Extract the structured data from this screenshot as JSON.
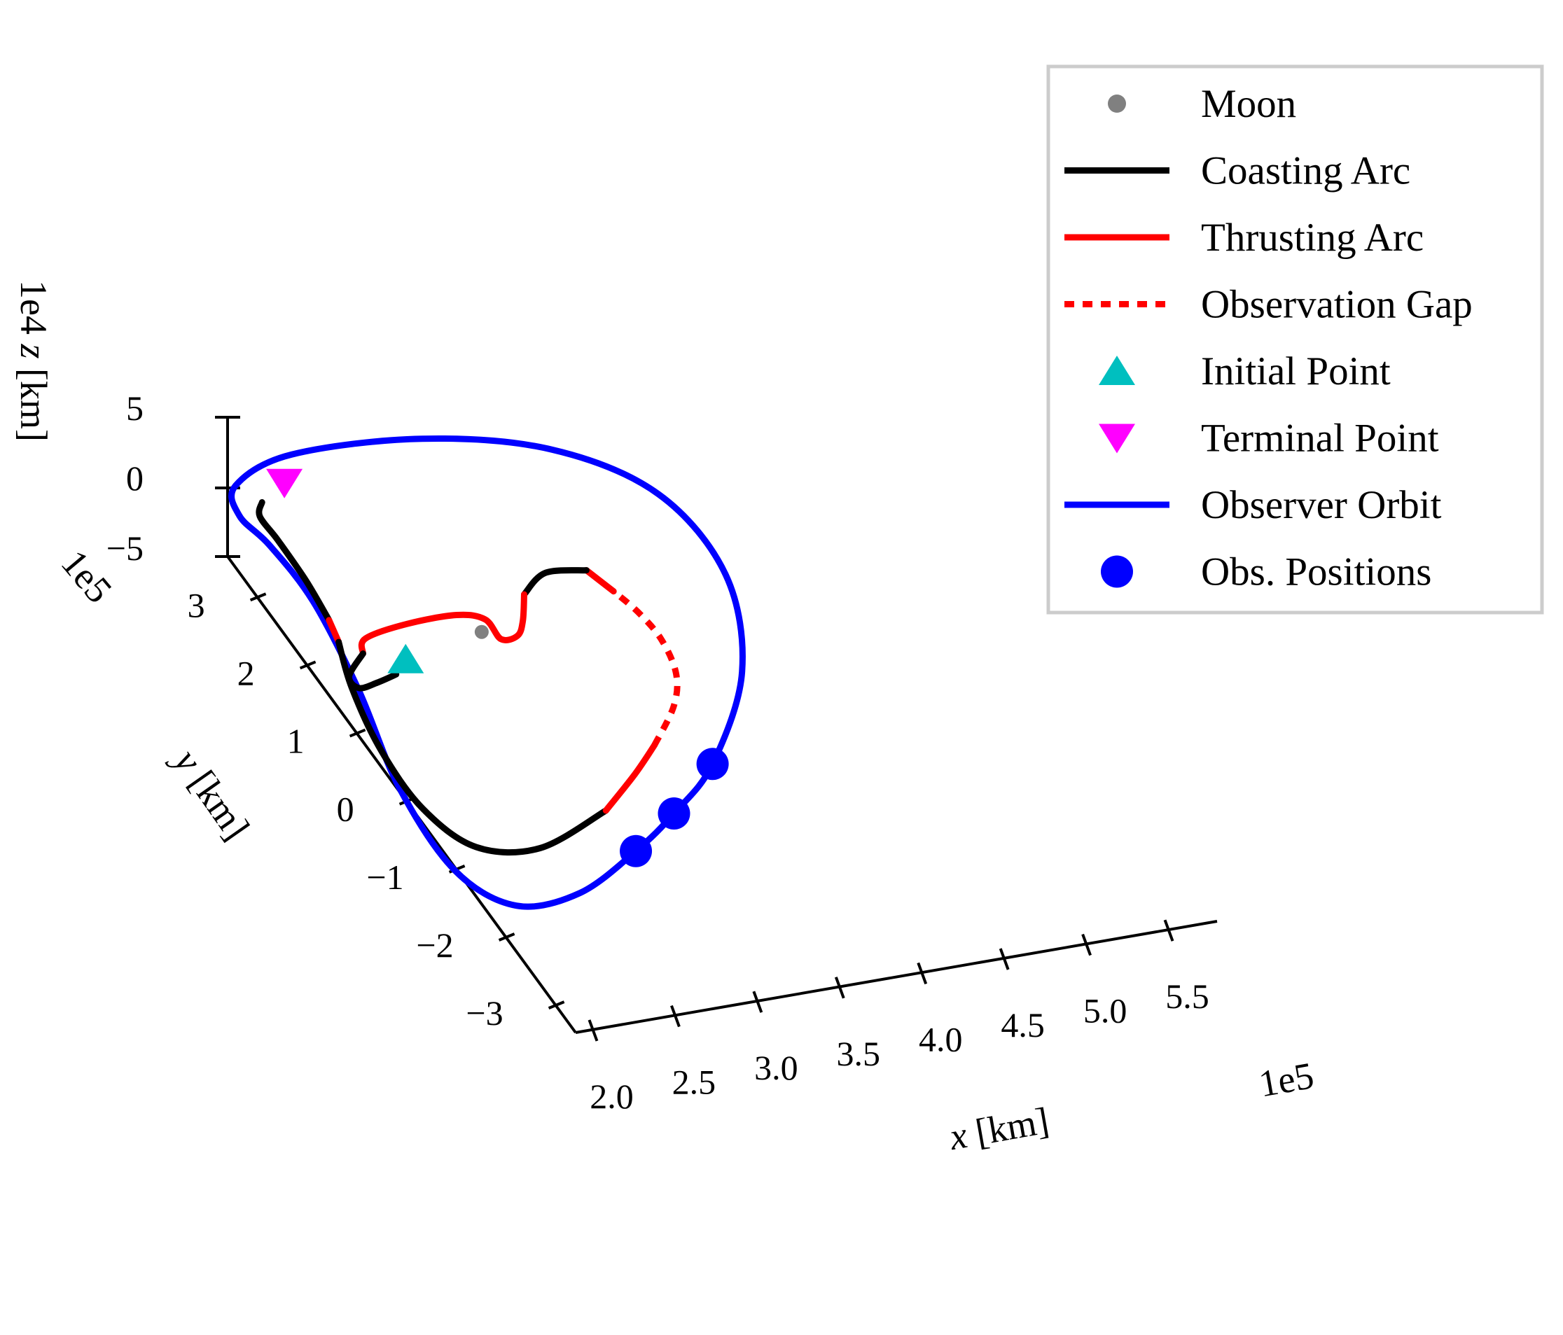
{
  "chart_data": {
    "type": "line",
    "projection": "3d",
    "title": "",
    "axes": {
      "x": {
        "label": "x [km]",
        "label_var": "x",
        "label_unit": " [km]",
        "ticks": [
          2.0,
          2.5,
          3.0,
          3.5,
          4.0,
          4.5,
          5.0,
          5.5
        ],
        "tick_labels": [
          "2.0",
          "2.5",
          "3.0",
          "3.5",
          "4.0",
          "4.5",
          "5.0",
          "5.5"
        ],
        "scale_text": "1e5",
        "lim": [
          1.9,
          5.8
        ]
      },
      "y": {
        "label": "y [km]",
        "label_var": "y",
        "label_unit": " [km]",
        "ticks": [
          -3,
          -2,
          -1,
          0,
          1,
          2,
          3
        ],
        "tick_labels": [
          "−3",
          "−2",
          "−1",
          "0",
          "1",
          "2",
          "3"
        ],
        "scale_text": "1e5",
        "lim": [
          -3.4,
          3.6
        ]
      },
      "z": {
        "label": "z [km]",
        "label_var": "z",
        "label_unit": " [km]",
        "ticks": [
          -5,
          0,
          5
        ],
        "tick_labels": [
          "−5",
          "0",
          "5"
        ],
        "scale_text": "1e4",
        "lim": [
          -5,
          5
        ]
      }
    },
    "legend": {
      "placement": "top-right",
      "entries": [
        {
          "label": "Moon",
          "marker": "dot",
          "color": "#808080"
        },
        {
          "label": "Coasting Arc",
          "marker": "line",
          "color": "#000000"
        },
        {
          "label": "Thrusting Arc",
          "marker": "line",
          "color": "#ff0000"
        },
        {
          "label": "Observation Gap",
          "marker": "dotted",
          "color": "#ff0000"
        },
        {
          "label": "Initial Point",
          "marker": "triangle-up",
          "color": "#00bfbf"
        },
        {
          "label": "Terminal Point",
          "marker": "triangle-down",
          "color": "#ff00ff"
        },
        {
          "label": "Observer Orbit",
          "marker": "line",
          "color": "#0000ff"
        },
        {
          "label": "Obs. Positions",
          "marker": "circle",
          "color": "#0000ff"
        }
      ]
    },
    "series": [
      {
        "name": "Observer Orbit",
        "style": "solid",
        "color": "#0000ff",
        "closed": true,
        "points": [
          [
            5.36,
            -1.31
          ],
          [
            5.57,
            -0.85
          ],
          [
            5.67,
            0.1
          ],
          [
            5.45,
            1.2
          ],
          [
            4.9,
            2.23
          ],
          [
            4.12,
            2.95
          ],
          [
            3.22,
            3.35
          ],
          [
            2.34,
            3.46
          ],
          [
            1.99,
            3.24
          ],
          [
            2.05,
            2.9
          ],
          [
            2.29,
            2.51
          ],
          [
            2.65,
            1.8
          ],
          [
            3.06,
            0.73
          ],
          [
            3.45,
            -0.44
          ],
          [
            3.92,
            -1.46
          ],
          [
            4.38,
            -1.98
          ],
          [
            4.8,
            -1.98
          ],
          [
            5.14,
            -1.64
          ]
        ]
      },
      {
        "name": "Coasting Arc",
        "style": "solid",
        "color": "#000000",
        "points": [
          [
            2.19,
            3.0
          ],
          [
            2.19,
            2.85
          ],
          [
            2.34,
            2.55
          ],
          [
            2.58,
            2.04
          ],
          [
            2.78,
            1.56
          ]
        ]
      },
      {
        "name": "Thrusting Arc",
        "style": "solid",
        "color": "#ff0000",
        "points": [
          [
            2.78,
            1.56
          ],
          [
            2.87,
            1.3
          ]
        ]
      },
      {
        "name": "Coasting Arc",
        "style": "solid",
        "color": "#000000",
        "points": [
          [
            2.87,
            1.3
          ],
          [
            3.01,
            0.77
          ],
          [
            3.28,
            0.02
          ],
          [
            3.63,
            -0.71
          ],
          [
            4.04,
            -1.25
          ],
          [
            4.48,
            -1.4
          ],
          [
            4.89,
            -1.13
          ]
        ]
      },
      {
        "name": "Thrusting Arc",
        "style": "solid",
        "color": "#ff0000",
        "points": [
          [
            4.89,
            -1.13
          ],
          [
            5.05,
            -0.79
          ],
          [
            5.15,
            -0.52
          ]
        ]
      },
      {
        "name": "Observation Gap",
        "style": "dotted",
        "color": "#ff0000",
        "points": [
          [
            5.15,
            -0.52
          ],
          [
            5.24,
            -0.13
          ],
          [
            5.22,
            0.22
          ],
          [
            5.08,
            0.63
          ],
          [
            4.89,
            0.98
          ],
          [
            4.7,
            1.26
          ]
        ]
      },
      {
        "name": "Thrusting Arc",
        "style": "solid",
        "color": "#ff0000",
        "points": [
          [
            4.7,
            1.26
          ],
          [
            4.49,
            1.55
          ]
        ]
      },
      {
        "name": "Coasting Arc",
        "style": "solid",
        "color": "#000000",
        "points": [
          [
            4.49,
            1.55
          ],
          [
            4.21,
            1.61
          ],
          [
            4.09,
            1.42
          ]
        ]
      },
      {
        "name": "Thrusting Arc",
        "style": "solid",
        "color": "#ff0000",
        "points": [
          [
            4.09,
            1.42
          ],
          [
            4.11,
            1.13
          ],
          [
            4.09,
            0.98
          ],
          [
            3.98,
            0.98
          ],
          [
            3.85,
            1.23
          ],
          [
            3.65,
            1.34
          ],
          [
            3.32,
            1.35
          ],
          [
            3.05,
            1.28
          ],
          [
            3.05,
            1.12
          ]
        ]
      },
      {
        "name": "Coasting Arc",
        "style": "solid",
        "color": "#000000",
        "points": [
          [
            3.05,
            1.12
          ],
          [
            2.98,
            0.9
          ],
          [
            3.06,
            0.75
          ],
          [
            3.18,
            0.77
          ],
          [
            3.3,
            0.82
          ]
        ]
      }
    ],
    "markers": [
      {
        "name": "Moon",
        "x": 3.84,
        "y": 1.1,
        "marker": "dot",
        "color": "#808080"
      },
      {
        "name": "Initial Point",
        "x": 3.35,
        "y": 0.95,
        "marker": "triangle-up",
        "color": "#00bfbf"
      },
      {
        "name": "Terminal Point",
        "x": 2.32,
        "y": 3.18,
        "marker": "triangle-down",
        "color": "#ff00ff"
      },
      {
        "name": "Obs. Positions",
        "x": 5.57,
        "y": -0.85,
        "marker": "circle",
        "color": "#0000ff"
      },
      {
        "name": "Obs. Positions",
        "x": 5.36,
        "y": -1.31,
        "marker": "circle",
        "color": "#0000ff"
      },
      {
        "name": "Obs. Positions",
        "x": 5.14,
        "y": -1.64,
        "marker": "circle",
        "color": "#0000ff"
      }
    ]
  }
}
